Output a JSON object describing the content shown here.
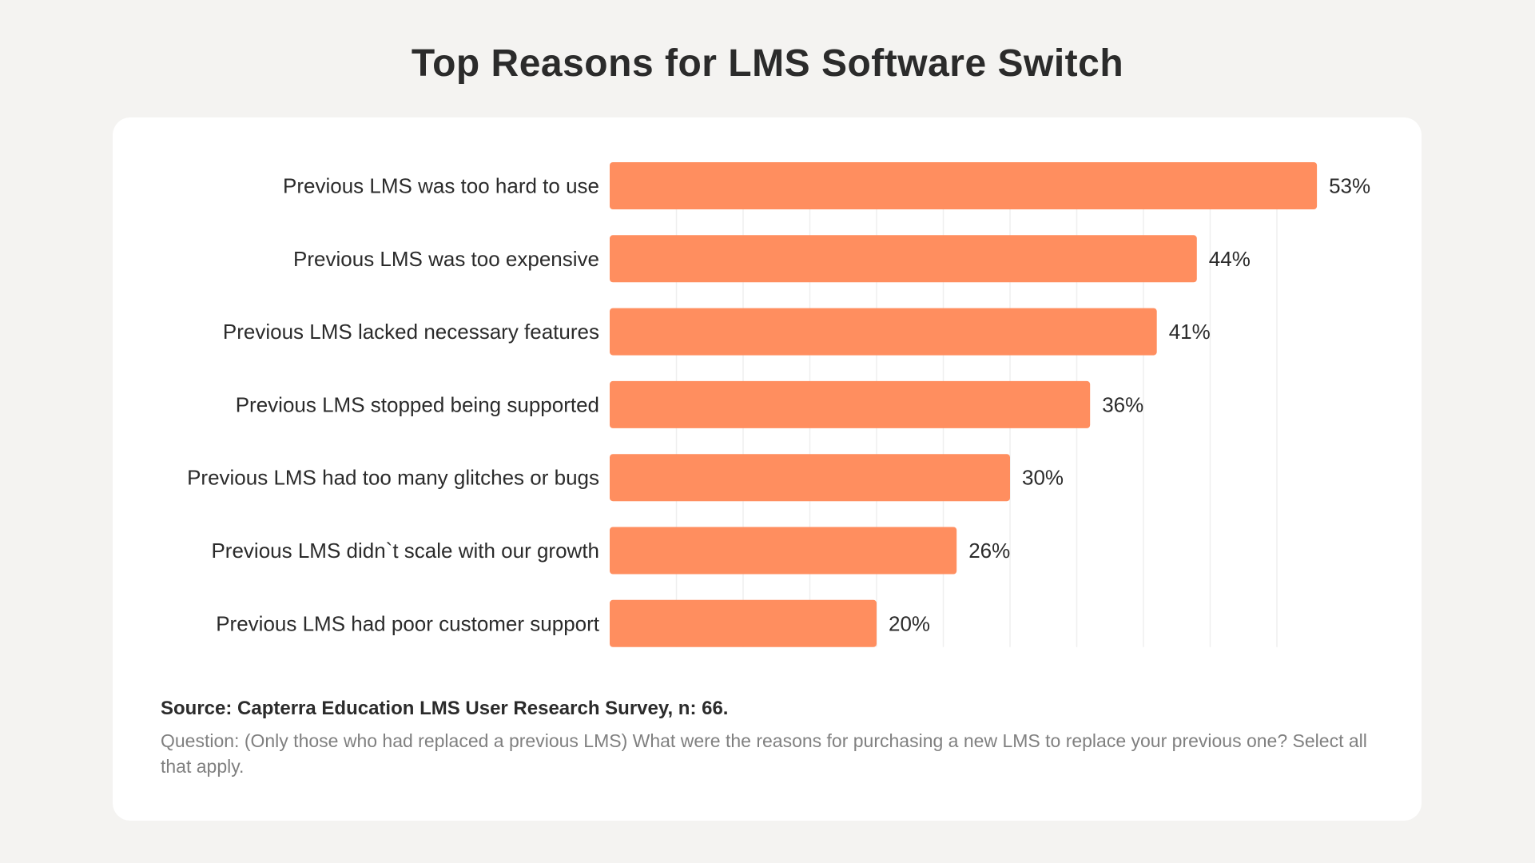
{
  "chart_data": {
    "type": "bar",
    "orientation": "horizontal",
    "title": "Top Reasons for LMS Software Switch",
    "categories": [
      "Previous LMS was too hard to use",
      "Previous LMS was too expensive",
      "Previous LMS lacked necessary features",
      "Previous LMS stopped being supported",
      "Previous LMS had too many glitches or bugs",
      "Previous LMS didn`t scale with our growth",
      "Previous LMS had poor customer support"
    ],
    "values": [
      53,
      44,
      41,
      36,
      30,
      26,
      20
    ],
    "value_labels": [
      "53%",
      "44%",
      "41%",
      "36%",
      "30%",
      "26%",
      "20%"
    ],
    "xlim": [
      0,
      55
    ],
    "grid": true,
    "grid_step": 5,
    "bar_color": "#ff8e5f"
  },
  "footer": {
    "source": "Source: Capterra Education LMS User Research Survey, n: 66.",
    "question": "Question: (Only those who had replaced a previous LMS) What were the reasons for purchasing a new LMS to replace your previous one? Select all that apply."
  }
}
